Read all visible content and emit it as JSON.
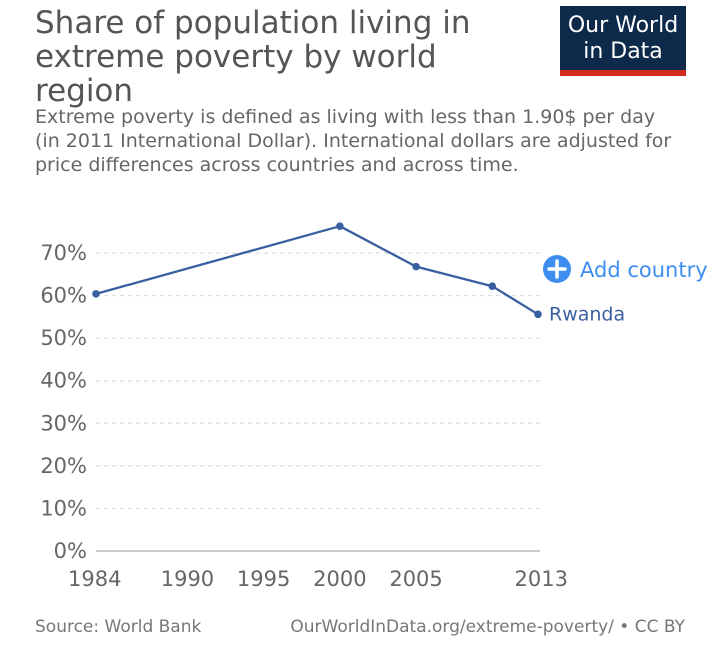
{
  "header": {
    "title": "Share of population living in extreme poverty by world region",
    "subtitle": "Extreme poverty is defined as living with less than 1.90$ per day (in 2011 International Dollar). International dollars are adjusted for price differences across countries and across time."
  },
  "logo": {
    "line1": "Our World",
    "line2": "in Data"
  },
  "controls": {
    "add_country_label": "Add country"
  },
  "footer": {
    "source": "Source: World Bank",
    "url": "OurWorldInData.org/extreme-poverty/ • CC BY"
  },
  "colors": {
    "series": "#3a5fa0",
    "accent": "#3d8ef0",
    "grid": "#dddddd"
  },
  "chart_data": {
    "type": "line",
    "xlim": [
      1984,
      2013
    ],
    "ylim": [
      0,
      70
    ],
    "x_ticks": [
      1984,
      1990,
      1995,
      2000,
      2005,
      2013
    ],
    "y_ticks": [
      0,
      10,
      20,
      30,
      40,
      50,
      60,
      70
    ],
    "y_tick_suffix": "%",
    "grid": true,
    "series": [
      {
        "name": "Rwanda",
        "x": [
          1984,
          2000,
          2005,
          2010,
          2013
        ],
        "y": [
          60.4,
          76.3,
          66.8,
          62.2,
          55.6
        ]
      }
    ]
  }
}
